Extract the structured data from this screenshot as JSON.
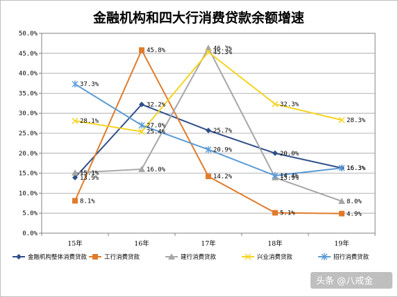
{
  "chart_data": {
    "type": "line",
    "title": "金融机构和四大行消费贷款余额增速",
    "categories": [
      "15年",
      "16年",
      "17年",
      "18年",
      "19年"
    ],
    "ylim": [
      0,
      50
    ],
    "yticks": [
      "0.0%",
      "5.0%",
      "10.0%",
      "15.0%",
      "20.0%",
      "25.0%",
      "30.0%",
      "35.0%",
      "40.0%",
      "45.0%",
      "50.0%"
    ],
    "grid": true,
    "legend_position": "bottom",
    "series": [
      {
        "name": "金融机构整体消费贷款",
        "values": [
          13.9,
          32.2,
          25.7,
          20.0,
          16.3
        ],
        "labels": [
          "13.9%",
          "32.2%",
          "25.7%",
          "20.0%",
          "16.3%"
        ],
        "color": "#2e4e8a",
        "marker": "diamond"
      },
      {
        "name": "工行消费贷款",
        "values": [
          8.1,
          45.8,
          14.2,
          5.1,
          4.9
        ],
        "labels": [
          "8.1%",
          "45.8%",
          "14.2%",
          "5.1%",
          "4.9%"
        ],
        "color": "#e07b2b",
        "marker": "square"
      },
      {
        "name": "建行消费贷款",
        "values": [
          15.1,
          16.0,
          46.3,
          13.9,
          8.0
        ],
        "labels": [
          "15.1%",
          "16.0%",
          "46.3%",
          "13.9%",
          "8.0%"
        ],
        "color": "#a6a6a6",
        "marker": "triangle"
      },
      {
        "name": "兴业消费贷款",
        "values": [
          28.1,
          25.4,
          45.3,
          32.3,
          28.3
        ],
        "labels": [
          "28.1%",
          "25.4%",
          "45.3%",
          "32.3%",
          "28.3%"
        ],
        "color": "#f5d31f",
        "marker": "x"
      },
      {
        "name": "招行消费贷款",
        "values": [
          37.3,
          27.0,
          20.9,
          14.4,
          16.3
        ],
        "labels": [
          "37.3%",
          "27.0%",
          "20.9%",
          "14.4%",
          "16.3%"
        ],
        "color": "#5b9bd5",
        "marker": "star"
      }
    ]
  },
  "watermark": "头条 @八戒金"
}
